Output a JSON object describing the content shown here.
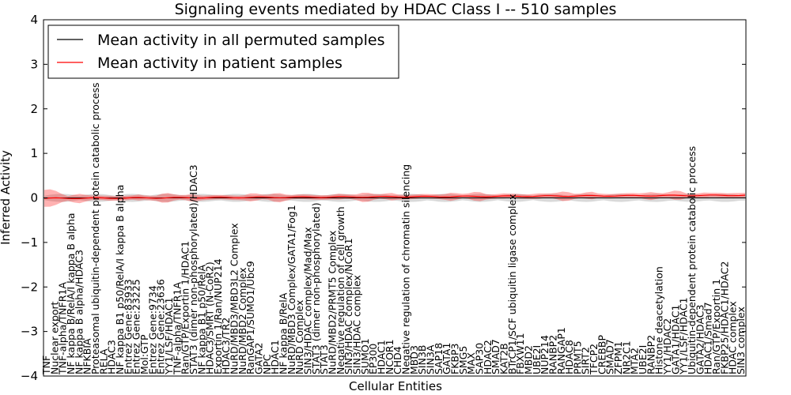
{
  "chart_data": {
    "type": "line",
    "title": "Signaling events mediated by HDAC Class I -- 510 samples",
    "xlabel": "Cellular Entities",
    "ylabel": "Inferred Activity",
    "ylim": [
      -4,
      4
    ],
    "yticks": [
      "4",
      "3",
      "2",
      "1",
      "0",
      "−1",
      "−2",
      "−3",
      "−4"
    ],
    "legend": {
      "placement": "top-left",
      "entries": [
        {
          "label": "Mean activity in all permuted samples",
          "color": "#000000"
        },
        {
          "label": "Mean activity in patient samples",
          "color": "#ff0000"
        }
      ]
    },
    "categories": [
      "TNF",
      "Nuclear export",
      "TNF-alpha/TNFR1A",
      "NF kappa B/RelA/I kappa B alpha",
      "NF kappa B alpha/HDAC3",
      "NFKBIA",
      "Proteasomal ubiquitin-dependent protein catabolic process",
      "RELA",
      "HDAC3",
      "NF kappa B1 p50/RelA/I kappa B alpha",
      "Entrez Gene:83933",
      "Entrez Gene:23225",
      "Mol:GTP",
      "Entrez Gene:9734",
      "Entrez Gene:23636",
      "YY1/LSF/HDAC1",
      "TNF-alpha/TNFR1A",
      "Ran/GTP/Exportin 1/HDAC1",
      "STAT3 (dimer non-phosphorylated)/HDAC3",
      "NF kappa B1 p50/RelA",
      "HDAC3/SMRT (N-CoR2)",
      "Exportin 1/Ran/NUP214",
      "HDAC3/TR2",
      "NuRD/MBD3/MBD3L2 Complex",
      "NuRD/MBD2 Complex",
      "RanGAP1/SUMO1/Ubc9",
      "GATA2",
      "NPC",
      "HDAC1",
      "NF kappa B/RelA",
      "NuRD/MBD3 Complex/GATA1/Fog1",
      "NuRD Complex",
      "SIN3/HDAC complex/Mad/Max",
      "STAT3 (dimer non-phosphorylated)",
      "STAT3",
      "NuRD/MBD2/PRMT5 Complex",
      "Negative regulation of cell growth",
      "SIN3/HDAC complex/NCoR1",
      "SIN3/HDAC complex",
      "SUMO1",
      "EP300",
      "HDAC1",
      "NCOR1",
      "CHD4",
      "Negative regulation of chromatin silencing",
      "MBD3",
      "SIN3B",
      "SIN3A",
      "SAP18",
      "GATA1",
      "FKBP3",
      "SMG5",
      "MAX",
      "SAP30",
      "HDAC2",
      "SMAD7",
      "KAT2B",
      "BTrCP1/SCF ubiquitin ligase complex",
      "FBXW11",
      "MBD2",
      "UBE2I",
      "NUP214",
      "RANBP2",
      "RANGAP1",
      "HDAC8",
      "PRMT5",
      "SIRT2",
      "TFCP2",
      "CREBBP",
      "SMAD7",
      "ZFPM1",
      "NR2C1",
      "MTA2",
      "UBE2I",
      "RANBP2",
      "Histone deacetylation",
      "YY1/HDAC2",
      "GATA1/HDAC1",
      "YY1/LSF/HDAC1",
      "Ubiquitin-dependent protein catabolic process",
      "GATA2/HDAC3",
      "HDAC1/Smad7",
      "Ran/GTP/Exportin 1",
      "FKBP25/HDAC1/HDAC2",
      "HDAC complex",
      "SIN3 complex"
    ]
  }
}
